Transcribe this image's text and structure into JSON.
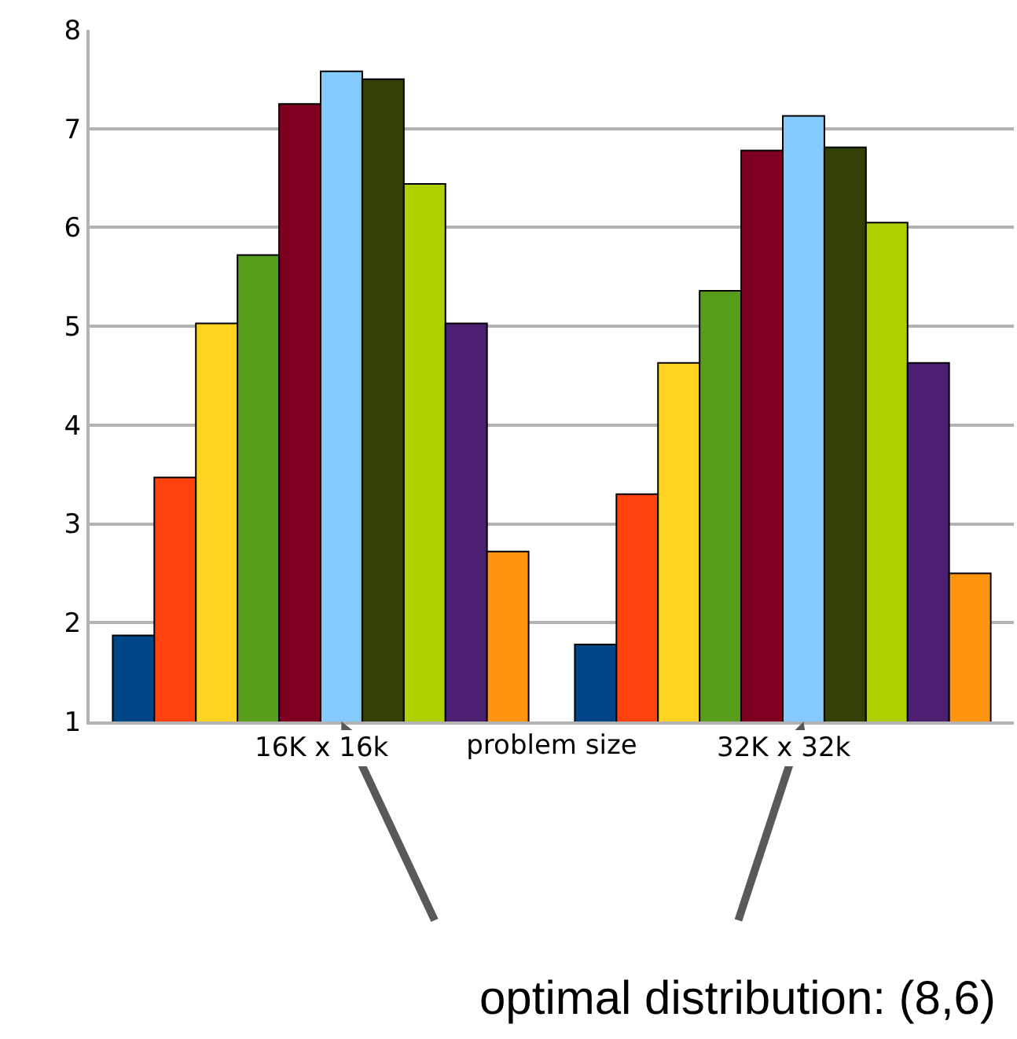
{
  "chart_data": {
    "type": "bar",
    "categories": [
      "16K x 16k",
      "32K x 32k"
    ],
    "xlabel": "problem size",
    "series": [
      {
        "color": "#004586",
        "values": [
          1.87,
          1.78
        ]
      },
      {
        "color": "#ff420e",
        "values": [
          3.47,
          3.3
        ]
      },
      {
        "color": "#ffd320",
        "values": [
          5.03,
          4.63
        ]
      },
      {
        "color": "#579d1c",
        "values": [
          5.72,
          5.36
        ]
      },
      {
        "color": "#7e0021",
        "values": [
          7.25,
          6.78
        ]
      },
      {
        "color": "#83caff",
        "values": [
          7.58,
          7.13
        ]
      },
      {
        "color": "#314004",
        "values": [
          7.5,
          6.81
        ]
      },
      {
        "color": "#aecf00",
        "values": [
          6.44,
          6.05
        ]
      },
      {
        "color": "#4b1f6f",
        "values": [
          5.03,
          4.63
        ]
      },
      {
        "color": "#ff950e",
        "values": [
          2.72,
          2.5
        ]
      }
    ],
    "ylim": [
      1,
      8
    ],
    "yticks": [
      1,
      2,
      3,
      4,
      5,
      6,
      7,
      8
    ],
    "grid": "y",
    "annotations": [
      "optimal distribution: (8,6)"
    ]
  }
}
